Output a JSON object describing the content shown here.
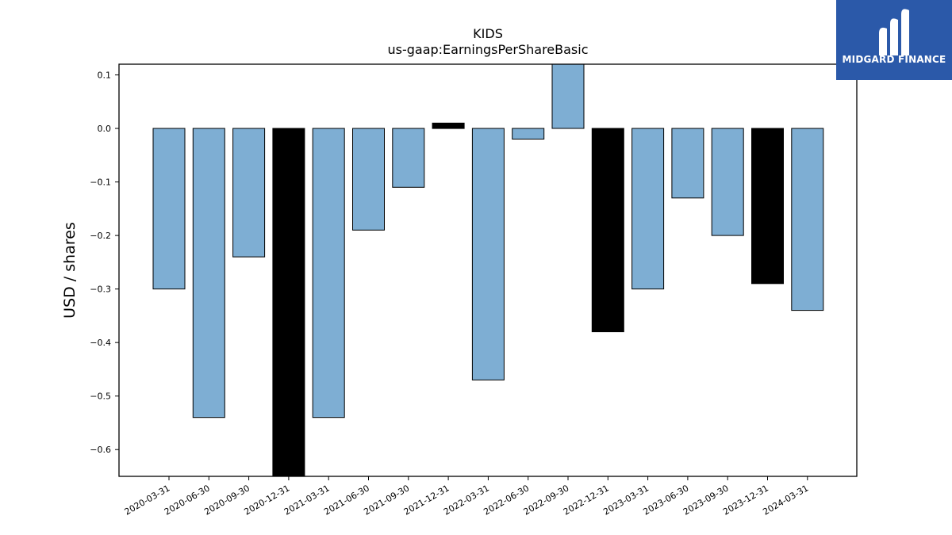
{
  "logo": {
    "text": "MIDGARD FINANCE",
    "color": "#2b59a9"
  },
  "chart_data": {
    "type": "bar",
    "title": "KIDS",
    "subtitle": "us-gaap:EarningsPerShareBasic",
    "xlabel": "",
    "ylabel": "USD / shares",
    "ylim": [
      -0.65,
      0.12
    ],
    "yticks": [
      0.1,
      0.0,
      -0.1,
      -0.2,
      -0.3,
      -0.4,
      -0.5,
      -0.6
    ],
    "ytick_labels": [
      "0.1",
      "0.0",
      "−0.1",
      "−0.2",
      "−0.3",
      "−0.4",
      "−0.5",
      "−0.6"
    ],
    "categories": [
      "2020-03-31",
      "2020-06-30",
      "2020-09-30",
      "2020-12-31",
      "2021-03-31",
      "2021-06-30",
      "2021-09-30",
      "2021-12-31",
      "2022-03-31",
      "2022-06-30",
      "2022-09-30",
      "2022-12-31",
      "2023-03-31",
      "2023-06-30",
      "2023-09-30",
      "2023-12-31",
      "2024-03-31"
    ],
    "values": [
      -0.3,
      -0.54,
      -0.24,
      -0.66,
      -0.54,
      -0.19,
      -0.11,
      0.01,
      -0.47,
      -0.02,
      0.13,
      -0.38,
      -0.3,
      -0.13,
      -0.2,
      -0.29,
      -0.34
    ],
    "bar_colors": [
      "#7eaed3",
      "#7eaed3",
      "#7eaed3",
      "#000000",
      "#7eaed3",
      "#7eaed3",
      "#7eaed3",
      "#000000",
      "#7eaed3",
      "#7eaed3",
      "#7eaed3",
      "#000000",
      "#7eaed3",
      "#7eaed3",
      "#7eaed3",
      "#000000",
      "#7eaed3"
    ],
    "grid": false,
    "legend": "none"
  }
}
